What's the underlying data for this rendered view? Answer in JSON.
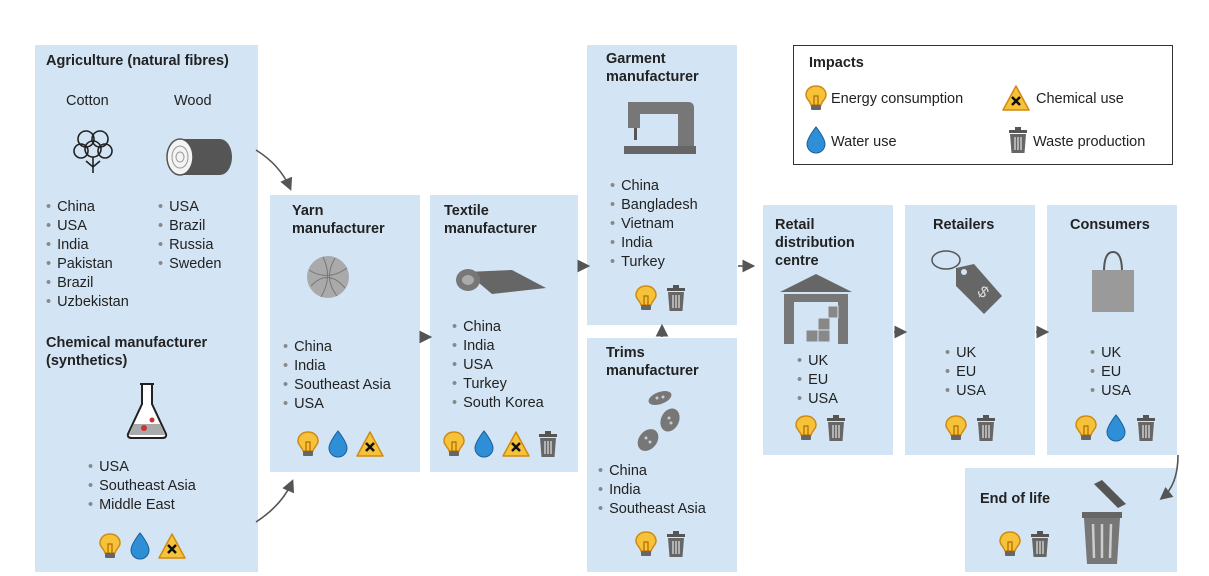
{
  "legend": {
    "title": "Impacts",
    "energy": "Energy consumption",
    "chemical": "Chemical use",
    "water": "Water use",
    "waste": "Waste production"
  },
  "agriculture": {
    "title": "Agriculture (natural fibres)",
    "cotton": {
      "label": "Cotton",
      "countries": [
        "China",
        "USA",
        "India",
        "Pakistan",
        "Brazil",
        "Uzbekistan"
      ]
    },
    "wood": {
      "label": "Wood",
      "countries": [
        "USA",
        "Brazil",
        "Russia",
        "Sweden"
      ]
    }
  },
  "chemical": {
    "title": "Chemical manufacturer (synthetics)",
    "countries": [
      "USA",
      "Southeast Asia",
      "Middle East"
    ]
  },
  "yarn": {
    "title": "Yarn manufacturer",
    "countries": [
      "China",
      "India",
      "Southeast Asia",
      "USA"
    ]
  },
  "textile": {
    "title": "Textile manufacturer",
    "countries": [
      "China",
      "India",
      "USA",
      "Turkey",
      "South Korea"
    ]
  },
  "garment": {
    "title": "Garment manufacturer",
    "countries": [
      "China",
      "Bangladesh",
      "Vietnam",
      "India",
      "Turkey"
    ]
  },
  "trims": {
    "title": "Trims manufacturer",
    "countries": [
      "China",
      "India",
      "Southeast Asia"
    ]
  },
  "retail_dc": {
    "title": "Retail distribution centre",
    "countries": [
      "UK",
      "EU",
      "USA"
    ]
  },
  "retailers": {
    "title": "Retailers",
    "countries": [
      "UK",
      "EU",
      "USA"
    ]
  },
  "consumers": {
    "title": "Consumers",
    "countries": [
      "UK",
      "EU",
      "USA"
    ]
  },
  "end_of_life": {
    "title": "End of life"
  }
}
